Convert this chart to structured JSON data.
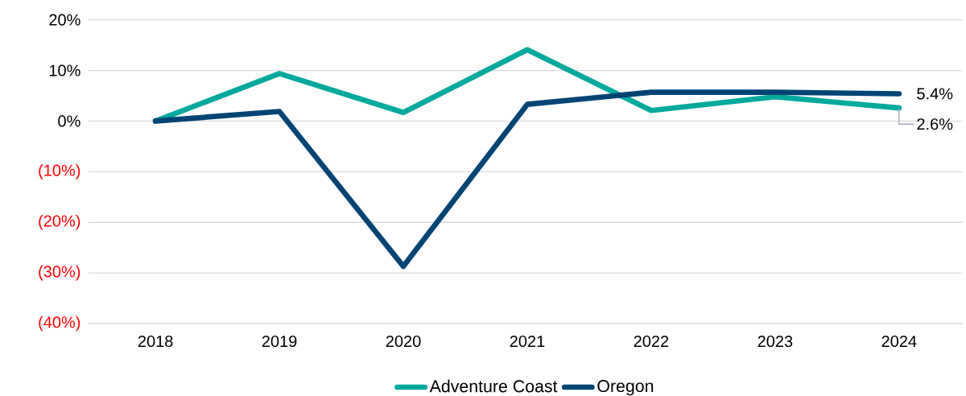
{
  "chart_data": {
    "type": "line",
    "categories": [
      "2018",
      "2019",
      "2020",
      "2021",
      "2022",
      "2023",
      "2024"
    ],
    "series": [
      {
        "name": "Adventure Coast",
        "color": "#00a99d",
        "values": [
          0,
          9.4,
          1.7,
          14.1,
          2.1,
          4.8,
          2.6
        ],
        "value_labels": [
          null,
          null,
          null,
          null,
          null,
          null,
          "2.6%"
        ]
      },
      {
        "name": "Oregon",
        "color": "#004475",
        "values": [
          0,
          1.9,
          -28.7,
          3.3,
          5.7,
          5.7,
          5.4
        ],
        "value_labels": [
          null,
          null,
          null,
          null,
          null,
          null,
          "5.4%"
        ]
      }
    ],
    "ylim": [
      -40,
      20
    ],
    "yticks": [
      {
        "value": 20,
        "label": "20%"
      },
      {
        "value": 10,
        "label": "10%"
      },
      {
        "value": 0,
        "label": "0%"
      },
      {
        "value": -10,
        "label": "(10%)"
      },
      {
        "value": -20,
        "label": "(20%)"
      },
      {
        "value": -30,
        "label": "(30%)"
      },
      {
        "value": -40,
        "label": "(40%)"
      }
    ],
    "grid": "y",
    "legend": "bottom",
    "marker": "none",
    "line_style": "solid"
  }
}
